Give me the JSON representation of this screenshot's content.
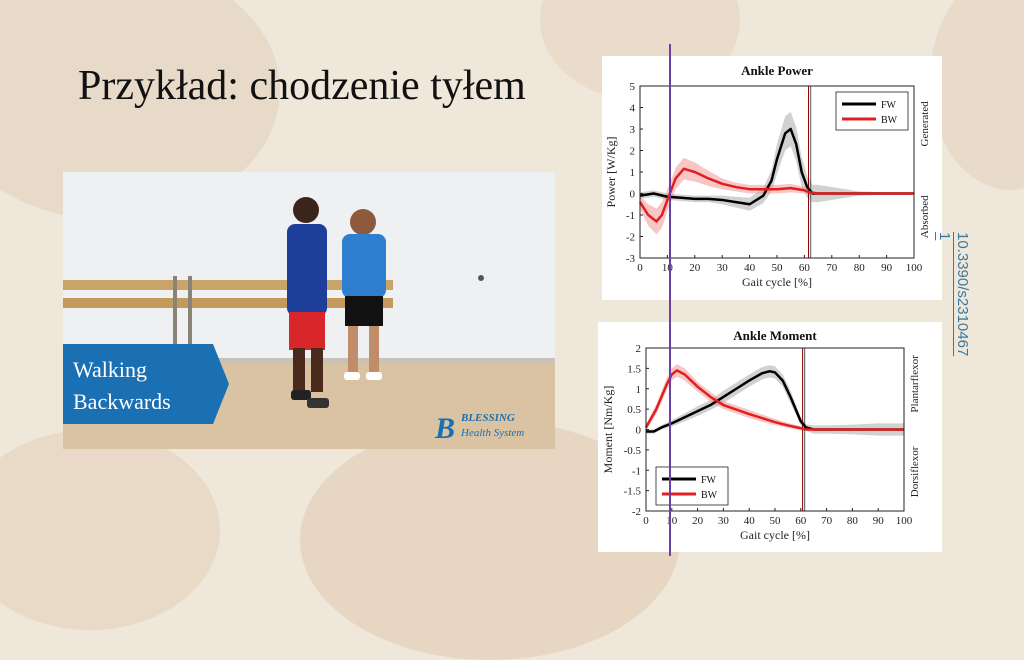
{
  "slide": {
    "title": "Przykład: chodzenie tyłem",
    "doi_line1": "10.3390/s2310467",
    "doi_line2": "1"
  },
  "video": {
    "caption_line1": "Walking",
    "caption_line2": "Backwards",
    "logo_glyph": "B",
    "logo_name": "BLESSING",
    "logo_sub": "Health System"
  },
  "colors": {
    "fw": "#000000",
    "bw": "#e02020",
    "accent": "#1b6fb3",
    "marker": "#6a3fa8"
  },
  "chart_data": [
    {
      "type": "line",
      "title": "Ankle Power",
      "xlabel": "Gait cycle [%]",
      "ylabel": "Power [W/Kg]",
      "right_label_top": "Generated",
      "right_label_bottom": "Absorbed",
      "xlim": [
        0,
        100
      ],
      "ylim": [
        -3,
        5
      ],
      "xticks": [
        0,
        10,
        20,
        30,
        40,
        50,
        60,
        70,
        80,
        90,
        100
      ],
      "yticks": [
        -3,
        -2,
        -1,
        0,
        1,
        2,
        3,
        4,
        5
      ],
      "legend_position": "top-right",
      "vlines": [
        {
          "x": 61.5,
          "color": "#8b0000"
        },
        {
          "x": 62.3,
          "color": "#555555"
        }
      ],
      "series": [
        {
          "name": "FW",
          "color": "#000000",
          "x": [
            0,
            5,
            10,
            15,
            20,
            25,
            30,
            35,
            40,
            45,
            48,
            50,
            53,
            55,
            57,
            59,
            61,
            63,
            65,
            70,
            80,
            90,
            100
          ],
          "y": [
            -0.1,
            0.0,
            -0.15,
            -0.2,
            -0.25,
            -0.25,
            -0.3,
            -0.4,
            -0.5,
            -0.1,
            0.6,
            1.6,
            2.8,
            3.0,
            2.3,
            1.0,
            0.3,
            0.0,
            0.0,
            0.0,
            0.0,
            0.0,
            0.0
          ],
          "sd": [
            0.15,
            0.15,
            0.15,
            0.15,
            0.15,
            0.15,
            0.2,
            0.25,
            0.3,
            0.35,
            0.5,
            0.7,
            0.8,
            0.8,
            0.8,
            0.7,
            0.5,
            0.4,
            0.4,
            0.3,
            0.1,
            0.05,
            0.05
          ]
        },
        {
          "name": "BW",
          "color": "#e02020",
          "x": [
            0,
            3,
            6,
            8,
            10,
            13,
            16,
            20,
            25,
            30,
            35,
            40,
            45,
            50,
            55,
            60,
            62,
            65,
            70,
            80,
            90,
            100
          ],
          "y": [
            -0.4,
            -1.0,
            -1.3,
            -1.0,
            -0.3,
            0.7,
            1.15,
            1.0,
            0.7,
            0.45,
            0.3,
            0.2,
            0.2,
            0.2,
            0.25,
            0.15,
            0.05,
            0.0,
            0.0,
            0.0,
            0.0,
            0.0
          ],
          "sd": [
            0.3,
            0.5,
            0.6,
            0.6,
            0.5,
            0.5,
            0.5,
            0.45,
            0.35,
            0.25,
            0.2,
            0.2,
            0.2,
            0.2,
            0.2,
            0.15,
            0.1,
            0.05,
            0.05,
            0.05,
            0.05,
            0.05
          ]
        }
      ]
    },
    {
      "type": "line",
      "title": "Ankle Moment",
      "xlabel": "Gait cycle [%]",
      "ylabel": "Moment [Nm/Kg]",
      "right_label_top": "Plantarflexor",
      "right_label_bottom": "Dorsiflexor",
      "xlim": [
        0,
        100
      ],
      "ylim": [
        -2,
        2
      ],
      "xticks": [
        0,
        10,
        20,
        30,
        40,
        50,
        60,
        70,
        80,
        90,
        100
      ],
      "yticks": [
        -2,
        -1.5,
        -1,
        -0.5,
        0,
        0.5,
        1,
        1.5,
        2
      ],
      "legend_position": "bottom-left",
      "vlines": [
        {
          "x": 60.7,
          "color": "#8b0000"
        },
        {
          "x": 61.5,
          "color": "#555555"
        }
      ],
      "series": [
        {
          "name": "FW",
          "color": "#000000",
          "x": [
            0,
            3,
            6,
            10,
            15,
            20,
            25,
            30,
            35,
            40,
            45,
            48,
            50,
            53,
            56,
            58,
            60,
            62,
            65,
            70,
            80,
            90,
            100
          ],
          "y": [
            -0.05,
            -0.05,
            0.05,
            0.15,
            0.3,
            0.45,
            0.6,
            0.8,
            1.0,
            1.2,
            1.38,
            1.43,
            1.4,
            1.2,
            0.8,
            0.5,
            0.2,
            0.05,
            0.0,
            0.0,
            0.0,
            0.0,
            0.0
          ],
          "sd": [
            0.05,
            0.05,
            0.05,
            0.08,
            0.1,
            0.12,
            0.12,
            0.15,
            0.15,
            0.15,
            0.15,
            0.15,
            0.15,
            0.15,
            0.15,
            0.12,
            0.1,
            0.08,
            0.1,
            0.1,
            0.12,
            0.15,
            0.15
          ]
        },
        {
          "name": "BW",
          "color": "#e02020",
          "x": [
            0,
            4,
            8,
            10,
            12,
            15,
            20,
            25,
            30,
            40,
            50,
            55,
            60,
            62,
            65,
            70,
            80,
            90,
            100
          ],
          "y": [
            0.05,
            0.5,
            1.1,
            1.35,
            1.45,
            1.35,
            1.05,
            0.8,
            0.6,
            0.38,
            0.18,
            0.1,
            0.03,
            0.0,
            0.0,
            0.0,
            0.0,
            0.0,
            0.0
          ],
          "sd": [
            0.08,
            0.12,
            0.15,
            0.15,
            0.15,
            0.15,
            0.12,
            0.12,
            0.1,
            0.1,
            0.08,
            0.06,
            0.05,
            0.03,
            0.03,
            0.03,
            0.03,
            0.03,
            0.03
          ]
        }
      ]
    }
  ]
}
